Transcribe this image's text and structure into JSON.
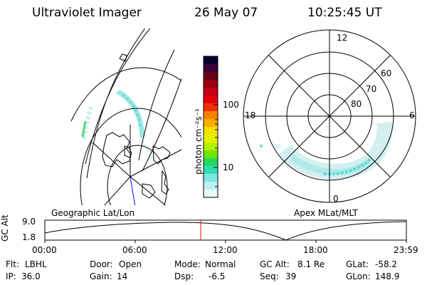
{
  "header": {
    "instrument": "Ultraviolet Imager",
    "date": "26 May 07",
    "time": "10:25:45 UT"
  },
  "geo_panel": {
    "label": "Geographic Lat/Lon"
  },
  "apex_panel": {
    "label": "Apex MLat/MLT",
    "lat_labels": [
      "60",
      "70",
      "80"
    ],
    "mlt_labels": [
      "12",
      "18",
      "6",
      "0"
    ]
  },
  "colorbar": {
    "unit_label": "photon cm⁻²s⁻¹",
    "tick_labels": [
      "100",
      "10"
    ],
    "colors": [
      "#000030",
      "#3a003a",
      "#6a0015",
      "#9a0010",
      "#c40010",
      "#e20010",
      "#f03000",
      "#f68000",
      "#f8b000",
      "#f6e000",
      "#e4f000",
      "#b4ef00",
      "#6ee600",
      "#22d860",
      "#30dcb0",
      "#7ee8e0",
      "#c0f0f0",
      "#e8f8f8"
    ]
  },
  "timeline": {
    "ylabel": "GC Alt",
    "y_ticks": [
      "9.0",
      "1.8"
    ],
    "x_ticks": [
      "00:00",
      "06:00",
      "12:00",
      "18:00",
      "23:59"
    ],
    "marker_color": "#ff0000"
  },
  "status": {
    "flt_label": "Flt:",
    "flt_value": "LBHL",
    "ip_label": "IP:",
    "ip_value": "36.0",
    "door_label": "Door:",
    "door_value": "Open",
    "gain_label": "Gain:",
    "gain_value": "14",
    "mode_label": "Mode:",
    "mode_value": "Normal",
    "dsp_label": "Dsp:",
    "dsp_value": "-6.5",
    "gcalt_label": "GC Alt:",
    "gcalt_value": "8.1 Re",
    "seq_label": "Seq:",
    "seq_value": "39",
    "glat_label": "GLat:",
    "glat_value": "-58.2",
    "glon_label": "GLon:",
    "glon_value": "148.9"
  }
}
